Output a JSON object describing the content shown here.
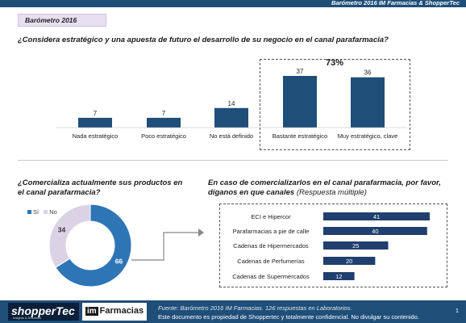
{
  "header": {
    "banner_text": "Barómetro 2016 IM Farmacias & ShopperTec",
    "badge": "Barómetro 2016"
  },
  "questions": {
    "q1": "¿Considera estratégico y una apuesta de futuro el desarrollo de su negocio en el canal parafarmacia?",
    "q2": "¿Comercializa actualmente sus productos en el canal parafarmacia?",
    "q3": "En caso de comercializarlos en el canal parafarmacia, por favor, díganos en que canales",
    "q3_note": "(Respuesta múltiple)"
  },
  "chart_data": [
    {
      "type": "bar",
      "orientation": "vertical",
      "categories": [
        "Nada estratégico",
        "Poco estratégico",
        "No está definido",
        "Bastante estratégico",
        "Muy estratégico, clave"
      ],
      "values": [
        7,
        7,
        14,
        37,
        36
      ],
      "data_labels": [
        "7",
        "7",
        "14",
        "37",
        "36"
      ],
      "annotation": "73%",
      "ylim": [
        0,
        37
      ],
      "color": "#1f4e79"
    },
    {
      "type": "pie",
      "categories": [
        "Sí",
        "No"
      ],
      "values": [
        66,
        34
      ],
      "data_labels": [
        "66",
        "34"
      ],
      "colors": [
        "#2e75b6",
        "#dcd2e6"
      ],
      "legend": "top-left"
    },
    {
      "type": "bar",
      "orientation": "horizontal",
      "categories": [
        "ECI e Hipercor",
        "Parafarmacias a pie de calle",
        "Cadenas de Hipermercados",
        "Cadenas de Perfumerías",
        "Cadenas de Supermercados"
      ],
      "values": [
        41,
        40,
        25,
        20,
        12
      ],
      "data_labels": [
        "41",
        "40",
        "25",
        "20",
        "12"
      ],
      "xlim": [
        0,
        41
      ],
      "color": "#1f3f6e"
    }
  ],
  "footer": {
    "logo_shoppertec": "shopperTec",
    "logo_shoppertec_sub": "Insights & Solutions",
    "logo_im": "im",
    "logo_farmacias": "Farmacias",
    "source": "Fuente: Barómetro 2016 IM Farmacias. 126 respuestas en Laboratorios.",
    "confidential": "Este documento es propiedad de Shoppertec y totalmente confidencial. No divulgar su contenido.",
    "page": "1"
  }
}
